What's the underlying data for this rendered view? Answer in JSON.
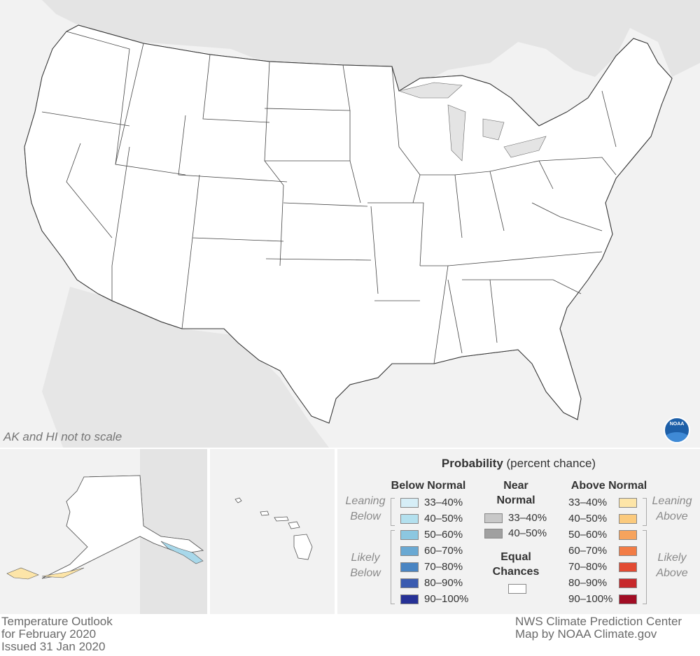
{
  "map": {
    "scale_note": "AK and HI not to scale",
    "footer_left": [
      "Temperature Outlook",
      "for February 2020",
      "Issued 31 Jan 2020"
    ],
    "footer_right": [
      "NWS Climate Prediction Center",
      "Map by NOAA Climate.gov"
    ],
    "logo_text": "NOAA",
    "colors": {
      "land": "#ffffff",
      "background": "#f2f2f2",
      "below_33_40": "#d6eef7",
      "below_40_50": "#a8d8ea",
      "above_33_40": "#fde5a8",
      "above_40_50": "#fbca7d",
      "above_50_60": "#f6a35d",
      "above_60_70": "#f28a4a"
    }
  },
  "legend": {
    "title_bold": "Probability",
    "title_rest": " (percent chance)",
    "below": {
      "heading": "Below Normal",
      "leaning": [
        "Leaning",
        "Below"
      ],
      "likely": [
        "Likely",
        "Below"
      ],
      "items": [
        {
          "label": "33–40%",
          "color": "#d6eef7"
        },
        {
          "label": "40–50%",
          "color": "#b3e0ee"
        },
        {
          "label": "50–60%",
          "color": "#8cc7e0"
        },
        {
          "label": "60–70%",
          "color": "#6aa9d3"
        },
        {
          "label": "70–80%",
          "color": "#4a85c3"
        },
        {
          "label": "80–90%",
          "color": "#3a5bb0"
        },
        {
          "label": "90–100%",
          "color": "#263196"
        }
      ]
    },
    "near": {
      "heading": [
        "Near",
        "Normal"
      ],
      "items": [
        {
          "label": "33–40%",
          "color": "#c8c8c8"
        },
        {
          "label": "40–50%",
          "color": "#a0a0a0"
        }
      ],
      "equal": [
        "Equal",
        "Chances"
      ],
      "equal_color": "#ffffff"
    },
    "above": {
      "heading": "Above Normal",
      "leaning": [
        "Leaning",
        "Above"
      ],
      "likely": [
        "Likely",
        "Above"
      ],
      "items": [
        {
          "label": "33–40%",
          "color": "#fde5a8"
        },
        {
          "label": "40–50%",
          "color": "#fbca7d"
        },
        {
          "label": "50–60%",
          "color": "#f6a35d"
        },
        {
          "label": "60–70%",
          "color": "#f27c45"
        },
        {
          "label": "70–80%",
          "color": "#e24a32"
        },
        {
          "label": "80–90%",
          "color": "#c7282a"
        },
        {
          "label": "90–100%",
          "color": "#a10d24"
        }
      ]
    }
  }
}
